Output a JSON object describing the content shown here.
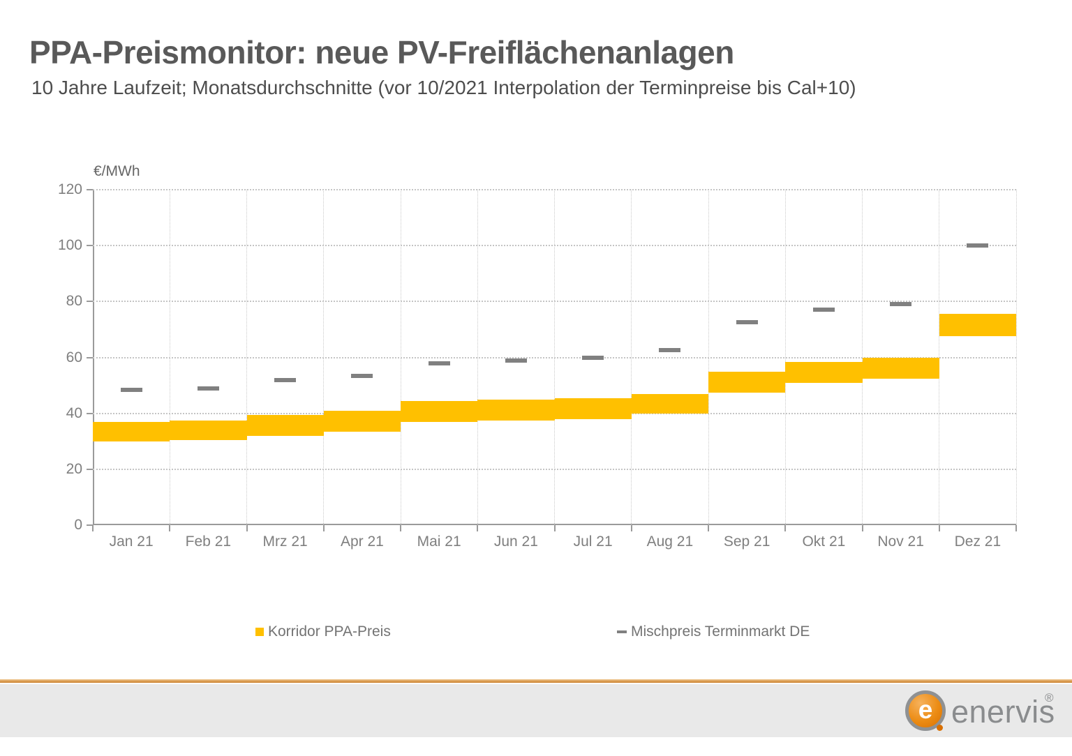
{
  "header": {
    "title": "PPA-Preismonitor: neue PV-Freiflächenanlagen",
    "subtitle": "10 Jahre Laufzeit; Monatsdurchschnitte (vor 10/2021 Interpolation der Terminpreise bis Cal+10)"
  },
  "chart_data": {
    "type": "bar",
    "subtype": "floating-band-with-dash-markers",
    "title": "PPA-Preismonitor: neue PV-Freiflächenanlagen",
    "xlabel": "",
    "ylabel": "€/MWh",
    "ylim": [
      0,
      120
    ],
    "yticks": [
      0,
      20,
      40,
      60,
      80,
      100,
      120
    ],
    "grid": true,
    "legend_position": "bottom",
    "categories": [
      "Jan 21",
      "Feb 21",
      "Mrz 21",
      "Apr 21",
      "Mai 21",
      "Jun 21",
      "Jul 21",
      "Aug 21",
      "Sep 21",
      "Okt 21",
      "Nov 21",
      "Dez 21"
    ],
    "series": [
      {
        "name": "Korridor PPA-Preis",
        "type": "band",
        "color": "#FFC000",
        "low": [
          30,
          30.5,
          32,
          33.5,
          37,
          37.5,
          38,
          40,
          47.5,
          51,
          52.5,
          67.5
        ],
        "high": [
          37,
          37.5,
          39.5,
          41,
          44.5,
          45,
          45.5,
          47,
          55,
          58.5,
          60,
          75.5
        ]
      },
      {
        "name": "Mischpreis Terminmarkt DE",
        "type": "dash",
        "color": "#808080",
        "values": [
          48.5,
          49,
          52,
          53.5,
          58,
          59,
          60,
          62.5,
          72.5,
          77,
          79,
          100
        ]
      }
    ]
  },
  "legend": {
    "items": [
      {
        "label": "Korridor PPA-Preis",
        "marker": "square",
        "color": "#FFC000"
      },
      {
        "label": "Mischpreis Terminmarkt DE",
        "marker": "dash",
        "color": "#808080"
      }
    ]
  },
  "footer": {
    "brand": "enervis",
    "registered": "®",
    "logo_letter": "e",
    "accent_orange": "#D86F00",
    "bar_color": "#E9E9E9"
  }
}
